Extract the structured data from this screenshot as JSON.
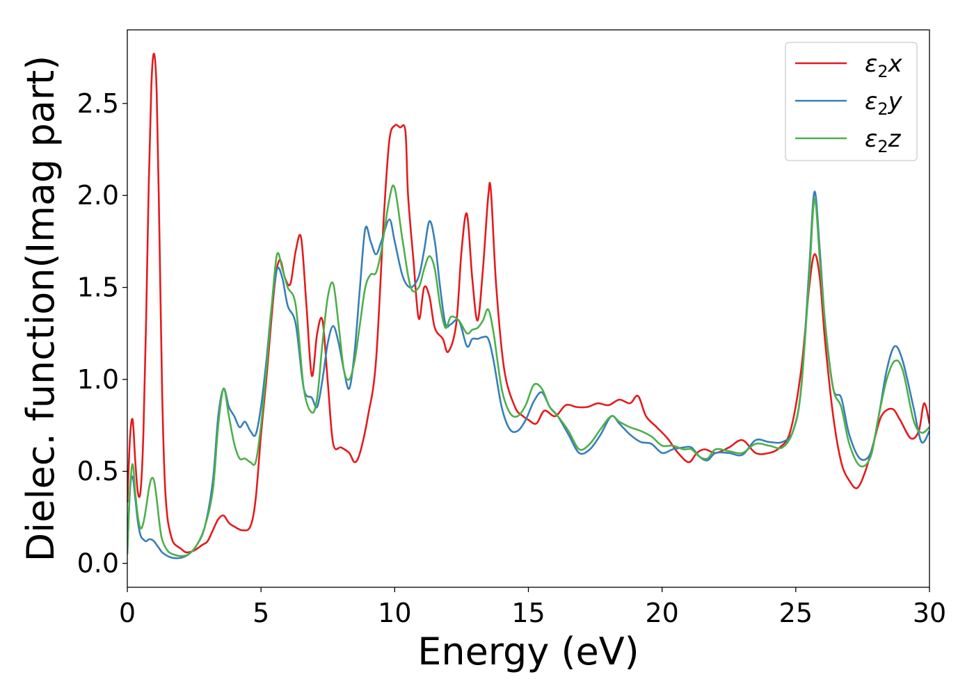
{
  "chart_data": {
    "type": "line",
    "xlabel": "Energy (eV)",
    "ylabel": "Dielec. function(Imag part)",
    "xlim": [
      0,
      30
    ],
    "ylim": [
      -0.13,
      2.9
    ],
    "xticks": [
      0,
      5,
      10,
      15,
      20,
      25,
      30
    ],
    "xtick_labels": [
      "0",
      "5",
      "10",
      "15",
      "20",
      "25",
      "30"
    ],
    "yticks": [
      0.0,
      0.5,
      1.0,
      1.5,
      2.0,
      2.5
    ],
    "ytick_labels": [
      "0.0",
      "0.5",
      "1.0",
      "1.5",
      "2.0",
      "2.5"
    ],
    "grid": false,
    "legend_position": "top-right",
    "series": [
      {
        "name": "ε₂x",
        "legend_main": "ε",
        "legend_sub": "2",
        "legend_tail": "x",
        "color": "#e41a1c",
        "x": [
          0,
          0.1,
          0.2,
          0.3,
          0.4,
          0.5,
          0.6,
          0.7,
          0.8,
          0.9,
          1.0,
          1.1,
          1.2,
          1.3,
          1.4,
          1.5,
          1.6,
          1.7,
          1.8,
          2.0,
          2.2,
          2.5,
          2.8,
          3.0,
          3.2,
          3.4,
          3.6,
          3.8,
          4.0,
          4.3,
          4.6,
          4.8,
          5.0,
          5.2,
          5.5,
          5.7,
          5.9,
          6.1,
          6.3,
          6.5,
          6.7,
          6.9,
          7.1,
          7.3,
          7.5,
          7.7,
          8.0,
          8.3,
          8.5,
          8.7,
          9.0,
          9.3,
          9.6,
          9.8,
          10.0,
          10.2,
          10.4,
          10.5,
          10.7,
          10.9,
          11.1,
          11.3,
          11.5,
          11.8,
          12.0,
          12.3,
          12.5,
          12.7,
          12.9,
          13.1,
          13.3,
          13.5,
          13.6,
          13.8,
          14.1,
          14.5,
          14.8,
          15.0,
          15.3,
          15.6,
          16.0,
          16.4,
          16.8,
          17.2,
          17.6,
          18.0,
          18.4,
          18.8,
          19.1,
          19.4,
          19.8,
          20.2,
          20.6,
          21.0,
          21.3,
          21.6,
          22.0,
          22.5,
          23.0,
          23.5,
          24.0,
          24.4,
          24.8,
          25.2,
          25.5,
          25.7,
          25.9,
          26.1,
          26.4,
          26.7,
          27.0,
          27.3,
          27.6,
          27.9,
          28.2,
          28.6,
          28.9,
          29.3,
          29.6,
          29.8,
          30.0
        ],
        "values": [
          0.33,
          0.68,
          0.78,
          0.55,
          0.38,
          0.4,
          0.7,
          1.3,
          2.05,
          2.6,
          2.77,
          2.55,
          1.8,
          0.95,
          0.45,
          0.25,
          0.17,
          0.12,
          0.1,
          0.08,
          0.06,
          0.07,
          0.1,
          0.12,
          0.18,
          0.24,
          0.26,
          0.22,
          0.2,
          0.18,
          0.2,
          0.35,
          0.7,
          1.0,
          1.5,
          1.65,
          1.55,
          1.52,
          1.7,
          1.77,
          1.4,
          1.02,
          1.25,
          1.32,
          0.98,
          0.65,
          0.63,
          0.6,
          0.55,
          0.6,
          0.8,
          1.1,
          1.9,
          2.3,
          2.38,
          2.37,
          2.35,
          2.0,
          1.65,
          1.33,
          1.5,
          1.45,
          1.28,
          1.22,
          1.15,
          1.3,
          1.7,
          1.9,
          1.55,
          1.32,
          1.6,
          2.0,
          2.02,
          1.5,
          1.05,
          0.85,
          0.8,
          0.78,
          0.76,
          0.83,
          0.8,
          0.86,
          0.85,
          0.85,
          0.87,
          0.86,
          0.89,
          0.87,
          0.91,
          0.8,
          0.74,
          0.68,
          0.6,
          0.55,
          0.6,
          0.62,
          0.6,
          0.63,
          0.67,
          0.6,
          0.6,
          0.63,
          0.72,
          1.05,
          1.5,
          1.68,
          1.55,
          1.2,
          0.8,
          0.55,
          0.45,
          0.41,
          0.5,
          0.65,
          0.8,
          0.84,
          0.78,
          0.68,
          0.72,
          0.87,
          0.76
        ]
      },
      {
        "name": "ε₂y",
        "legend_main": "ε",
        "legend_sub": "2",
        "legend_tail": "y",
        "color": "#377eb8",
        "x": [
          0,
          0.1,
          0.2,
          0.3,
          0.4,
          0.5,
          0.6,
          0.7,
          0.8,
          0.9,
          1.0,
          1.1,
          1.2,
          1.3,
          1.5,
          1.7,
          2.0,
          2.3,
          2.6,
          2.9,
          3.2,
          3.4,
          3.6,
          3.8,
          4.0,
          4.2,
          4.4,
          4.6,
          4.8,
          5.0,
          5.2,
          5.4,
          5.6,
          5.8,
          6.0,
          6.3,
          6.6,
          6.9,
          7.1,
          7.3,
          7.5,
          7.7,
          7.9,
          8.1,
          8.3,
          8.5,
          8.7,
          8.9,
          9.1,
          9.3,
          9.5,
          9.8,
          10.0,
          10.3,
          10.6,
          10.9,
          11.1,
          11.3,
          11.5,
          11.7,
          11.9,
          12.1,
          12.4,
          12.7,
          12.9,
          13.1,
          13.3,
          13.5,
          13.7,
          14.0,
          14.3,
          14.6,
          14.9,
          15.2,
          15.5,
          15.8,
          16.1,
          16.5,
          16.9,
          17.3,
          17.7,
          18.1,
          18.4,
          18.8,
          19.2,
          19.6,
          20.0,
          20.4,
          20.8,
          21.1,
          21.4,
          21.7,
          22.0,
          22.5,
          23.0,
          23.5,
          24.0,
          24.5,
          24.9,
          25.2,
          25.5,
          25.7,
          25.9,
          26.1,
          26.4,
          26.7,
          27.0,
          27.4,
          27.8,
          28.1,
          28.4,
          28.7,
          29.0,
          29.4,
          29.7,
          30.0
        ],
        "values": [
          0.05,
          0.4,
          0.47,
          0.35,
          0.22,
          0.15,
          0.13,
          0.12,
          0.13,
          0.13,
          0.12,
          0.1,
          0.08,
          0.06,
          0.04,
          0.03,
          0.03,
          0.05,
          0.1,
          0.2,
          0.45,
          0.8,
          0.95,
          0.85,
          0.8,
          0.74,
          0.77,
          0.72,
          0.7,
          0.85,
          1.1,
          1.4,
          1.6,
          1.55,
          1.4,
          1.3,
          0.95,
          0.9,
          0.85,
          1.0,
          1.2,
          1.29,
          1.2,
          1.05,
          0.95,
          1.15,
          1.5,
          1.82,
          1.75,
          1.68,
          1.75,
          1.87,
          1.75,
          1.56,
          1.5,
          1.56,
          1.7,
          1.86,
          1.75,
          1.5,
          1.3,
          1.3,
          1.32,
          1.18,
          1.22,
          1.22,
          1.23,
          1.22,
          1.1,
          0.85,
          0.73,
          0.72,
          0.78,
          0.88,
          0.93,
          0.85,
          0.8,
          0.7,
          0.6,
          0.62,
          0.7,
          0.8,
          0.76,
          0.7,
          0.66,
          0.65,
          0.6,
          0.62,
          0.63,
          0.63,
          0.58,
          0.56,
          0.6,
          0.6,
          0.59,
          0.67,
          0.66,
          0.66,
          0.72,
          0.95,
          1.6,
          2.02,
          1.7,
          1.3,
          0.95,
          0.9,
          0.7,
          0.57,
          0.6,
          0.8,
          1.05,
          1.18,
          1.1,
          0.85,
          0.66,
          0.72
        ]
      },
      {
        "name": "ε₂z",
        "legend_main": "ε",
        "legend_sub": "2",
        "legend_tail": "z",
        "color": "#4daf4a",
        "x": [
          0,
          0.1,
          0.2,
          0.3,
          0.4,
          0.5,
          0.6,
          0.7,
          0.8,
          0.9,
          1.0,
          1.1,
          1.2,
          1.3,
          1.5,
          1.7,
          2.0,
          2.3,
          2.6,
          2.9,
          3.2,
          3.4,
          3.6,
          3.8,
          4.0,
          4.2,
          4.4,
          4.6,
          4.8,
          5.0,
          5.2,
          5.4,
          5.6,
          5.8,
          6.0,
          6.3,
          6.6,
          6.9,
          7.1,
          7.3,
          7.5,
          7.7,
          7.9,
          8.1,
          8.3,
          8.5,
          8.7,
          8.9,
          9.1,
          9.3,
          9.5,
          9.8,
          10.0,
          10.3,
          10.6,
          10.9,
          11.1,
          11.3,
          11.5,
          11.7,
          11.9,
          12.1,
          12.4,
          12.7,
          12.9,
          13.1,
          13.3,
          13.5,
          13.7,
          14.0,
          14.3,
          14.6,
          14.9,
          15.2,
          15.5,
          15.8,
          16.1,
          16.5,
          16.9,
          17.3,
          17.7,
          18.1,
          18.4,
          18.8,
          19.2,
          19.6,
          20.0,
          20.4,
          20.8,
          21.1,
          21.4,
          21.7,
          22.0,
          22.5,
          23.0,
          23.5,
          24.0,
          24.5,
          24.9,
          25.2,
          25.5,
          25.7,
          25.9,
          26.1,
          26.4,
          26.7,
          27.0,
          27.4,
          27.8,
          28.1,
          28.4,
          28.7,
          29.0,
          29.4,
          29.7,
          30.0
        ],
        "values": [
          0.05,
          0.4,
          0.54,
          0.38,
          0.25,
          0.19,
          0.22,
          0.3,
          0.4,
          0.46,
          0.45,
          0.35,
          0.22,
          0.13,
          0.07,
          0.05,
          0.04,
          0.05,
          0.1,
          0.2,
          0.4,
          0.75,
          0.95,
          0.8,
          0.65,
          0.57,
          0.57,
          0.55,
          0.55,
          0.75,
          1.05,
          1.4,
          1.68,
          1.6,
          1.5,
          1.4,
          0.95,
          0.82,
          0.9,
          1.2,
          1.45,
          1.52,
          1.3,
          1.05,
          1.0,
          1.1,
          1.3,
          1.5,
          1.57,
          1.58,
          1.7,
          1.98,
          2.04,
          1.75,
          1.5,
          1.5,
          1.6,
          1.67,
          1.6,
          1.4,
          1.28,
          1.34,
          1.32,
          1.25,
          1.27,
          1.28,
          1.32,
          1.38,
          1.25,
          0.95,
          0.82,
          0.8,
          0.86,
          0.97,
          0.95,
          0.85,
          0.8,
          0.72,
          0.62,
          0.65,
          0.73,
          0.8,
          0.77,
          0.74,
          0.72,
          0.69,
          0.64,
          0.64,
          0.62,
          0.62,
          0.58,
          0.57,
          0.62,
          0.61,
          0.6,
          0.65,
          0.64,
          0.63,
          0.72,
          0.95,
          1.55,
          1.98,
          1.65,
          1.3,
          0.95,
          0.85,
          0.65,
          0.53,
          0.58,
          0.8,
          1.0,
          1.1,
          1.05,
          0.78,
          0.71,
          0.74
        ]
      }
    ]
  }
}
